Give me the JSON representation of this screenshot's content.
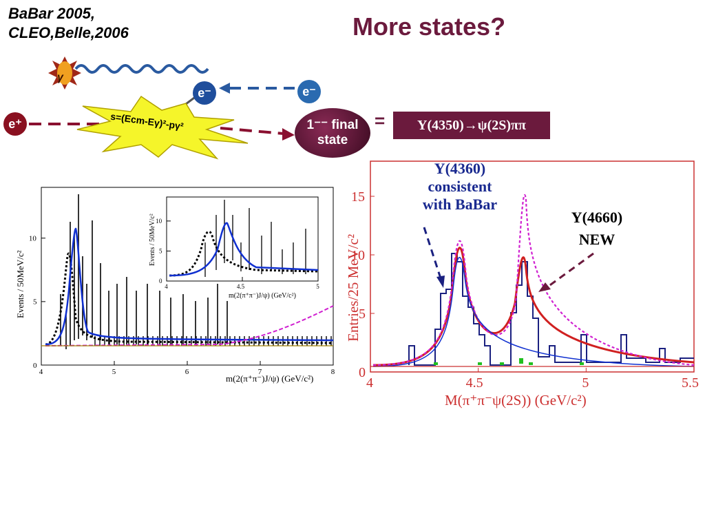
{
  "header": {
    "line1": "BaBar 2005,",
    "line2": "CLEO,Belle,2006"
  },
  "title": "More states?",
  "diagram": {
    "gamma": "γ",
    "e_minus": "e⁻",
    "e_plus": "e⁺",
    "star_formula": "s=(Ecm-Eγ)²-pγ²",
    "final_state_line1": "1⁻⁻ final",
    "final_state_line2": "state",
    "equals": "=",
    "y4350": "Y(4350)→ψ(2S)ππ"
  },
  "annotations": {
    "y4360_line1": "Y(4360)",
    "y4360_line2": "consistent",
    "y4360_line3": "with BaBar",
    "y4660_line1": "Y(4660)",
    "y4660_line2": "NEW"
  },
  "chart_data": [
    {
      "type": "line",
      "ylabel": "Events / 50MeV/c²",
      "xlabel": "m(2(π⁺π⁻)J/ψ)  (GeV/c²)",
      "xlim": [
        4,
        8
      ],
      "ylim": [
        0,
        14
      ],
      "xticks": [
        "4",
        "5",
        "6",
        "7",
        "8"
      ],
      "yticks": [
        "0",
        "5",
        "10"
      ],
      "fit_peak": 4.36,
      "inset": {
        "ylabel": "Events / 50MeV/c²",
        "xlabel": "m(2(π⁺π⁻)J/ψ)  (GeV/c²)",
        "xlim": [
          4,
          5
        ],
        "ylim": [
          0,
          14
        ],
        "xticks": [
          "4",
          "4.5",
          "5"
        ],
        "yticks": [
          "0",
          "5",
          "10"
        ]
      }
    },
    {
      "type": "line",
      "ylabel": "Entries/25 MeV/c²",
      "xlabel": "M(π⁺π⁻ψ(2S)) (GeV/c²)",
      "xlim": [
        4,
        5.5
      ],
      "ylim": [
        0,
        18
      ],
      "xticks": [
        "4",
        "4.5",
        "5",
        "5.5"
      ],
      "yticks": [
        "0",
        "5",
        "10",
        "15"
      ],
      "peaks": [
        4.36,
        4.66
      ]
    }
  ],
  "colors": {
    "title": "#6b1a3d",
    "accent": "#6b1a3d",
    "e_blue": "#1f4e9c",
    "e_red": "#8a1020",
    "star": "#f5f52a",
    "fit_blue": "#1030d0",
    "fit_red": "#d02020",
    "magenta": "#d020d0"
  }
}
